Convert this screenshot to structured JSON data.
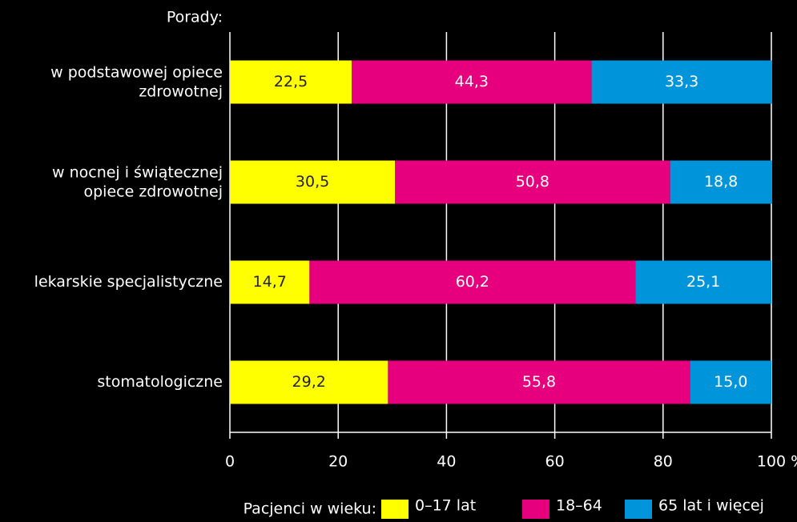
{
  "chart_data": {
    "type": "stacked_bar",
    "orientation": "horizontal",
    "y_label": "Porady:",
    "categories": [
      "w podstawowej opiece\nzdrowotnej",
      "w nocnej i świątecznej\nopiece zdrowotnej",
      "lekarskie specjalistyczne",
      "stomatologiczne"
    ],
    "series": [
      {
        "name": "0–17 lat",
        "color": "#ffff00",
        "values": [
          22.5,
          30.5,
          14.7,
          29.2
        ],
        "value_labels": [
          "22,5",
          "30,5",
          "14,7",
          "29,2"
        ]
      },
      {
        "name": "18–64",
        "color": "#e6007e",
        "values": [
          44.3,
          50.8,
          60.2,
          55.8
        ],
        "value_labels": [
          "44,3",
          "50,8",
          "60,2",
          "55,8"
        ]
      },
      {
        "name": "65 lat i więcej",
        "color": "#0095db",
        "values": [
          33.3,
          18.8,
          25.1,
          15.0
        ],
        "value_labels": [
          "33,3",
          "18,8",
          "25,1",
          "15,0"
        ]
      }
    ],
    "xlim": [
      0,
      100
    ],
    "xticks": [
      0,
      20,
      40,
      60,
      80,
      {
        "value": 100,
        "label": "100 %"
      }
    ],
    "grid": true,
    "legend_title": "Pacjenci w wieku:",
    "legend": "bottom"
  }
}
